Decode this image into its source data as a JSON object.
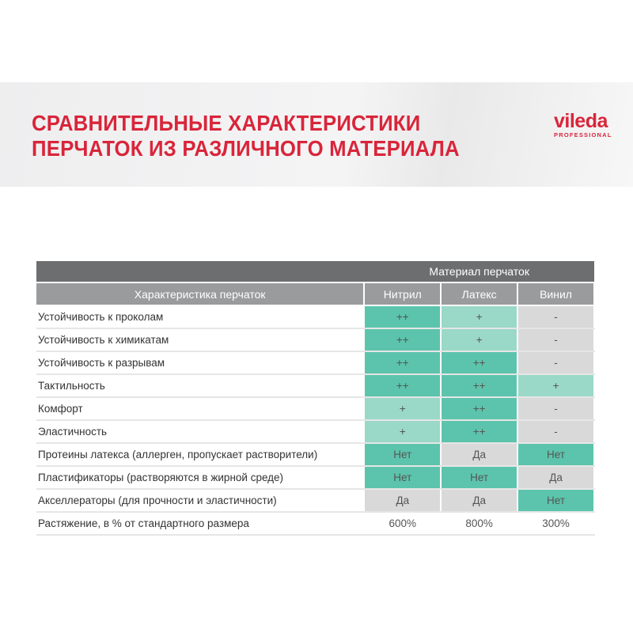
{
  "header": {
    "title_line1": "СРАВНИТЕЛЬНЫЕ ХАРАКТЕРИСТИКИ",
    "title_line2": "ПЕРЧАТОК ИЗ РАЗЛИЧНОГО МАТЕРИАЛА",
    "logo": {
      "name": "vileda",
      "sub": "PROFESSIONAL"
    }
  },
  "colors": {
    "accent": "#d9253a",
    "strong": "#5cc4ac",
    "medium": "#9ad8c8",
    "weak": "#d9d9da",
    "header_dark": "#6d6e70",
    "header_light": "#9a9b9d"
  },
  "table": {
    "group_header": "Материал перчаток",
    "columns": [
      "Характеристика перчаток",
      "Нитрил",
      "Латекс",
      "Винил"
    ],
    "rows": [
      {
        "label": "Устойчивость к проколам",
        "cells": [
          {
            "v": "++",
            "level": "strong"
          },
          {
            "v": "+",
            "level": "medium"
          },
          {
            "v": "-",
            "level": "weak"
          }
        ]
      },
      {
        "label": "Устойчивость к химикатам",
        "cells": [
          {
            "v": "++",
            "level": "strong"
          },
          {
            "v": "+",
            "level": "medium"
          },
          {
            "v": "-",
            "level": "weak"
          }
        ]
      },
      {
        "label": "Устойчивость к разрывам",
        "cells": [
          {
            "v": "++",
            "level": "strong"
          },
          {
            "v": "++",
            "level": "strong"
          },
          {
            "v": "-",
            "level": "weak"
          }
        ]
      },
      {
        "label": "Тактильность",
        "cells": [
          {
            "v": "++",
            "level": "strong"
          },
          {
            "v": "++",
            "level": "strong"
          },
          {
            "v": "+",
            "level": "medium"
          }
        ]
      },
      {
        "label": "Комфорт",
        "cells": [
          {
            "v": "+",
            "level": "medium"
          },
          {
            "v": "++",
            "level": "strong"
          },
          {
            "v": "-",
            "level": "weak"
          }
        ]
      },
      {
        "label": "Эластичность",
        "cells": [
          {
            "v": "+",
            "level": "medium"
          },
          {
            "v": "++",
            "level": "strong"
          },
          {
            "v": "-",
            "level": "weak"
          }
        ]
      },
      {
        "label": "Протеины латекса (аллерген, пропускает растворители)",
        "cells": [
          {
            "v": "Нет",
            "level": "strong"
          },
          {
            "v": "Да",
            "level": "weak"
          },
          {
            "v": "Нет",
            "level": "strong"
          }
        ]
      },
      {
        "label": "Пластификаторы (растворяются в жирной среде)",
        "cells": [
          {
            "v": "Нет",
            "level": "strong"
          },
          {
            "v": "Нет",
            "level": "strong"
          },
          {
            "v": "Да",
            "level": "weak"
          }
        ]
      },
      {
        "label": "Акселлераторы (для прочности и эластичности)",
        "cells": [
          {
            "v": "Да",
            "level": "weak"
          },
          {
            "v": "Да",
            "level": "weak"
          },
          {
            "v": "Нет",
            "level": "strong"
          }
        ]
      },
      {
        "label": "Растяжение, в % от стандартного размера",
        "cells": [
          {
            "v": "600%",
            "level": "none"
          },
          {
            "v": "800%",
            "level": "none"
          },
          {
            "v": "300%",
            "level": "none"
          }
        ]
      }
    ]
  }
}
